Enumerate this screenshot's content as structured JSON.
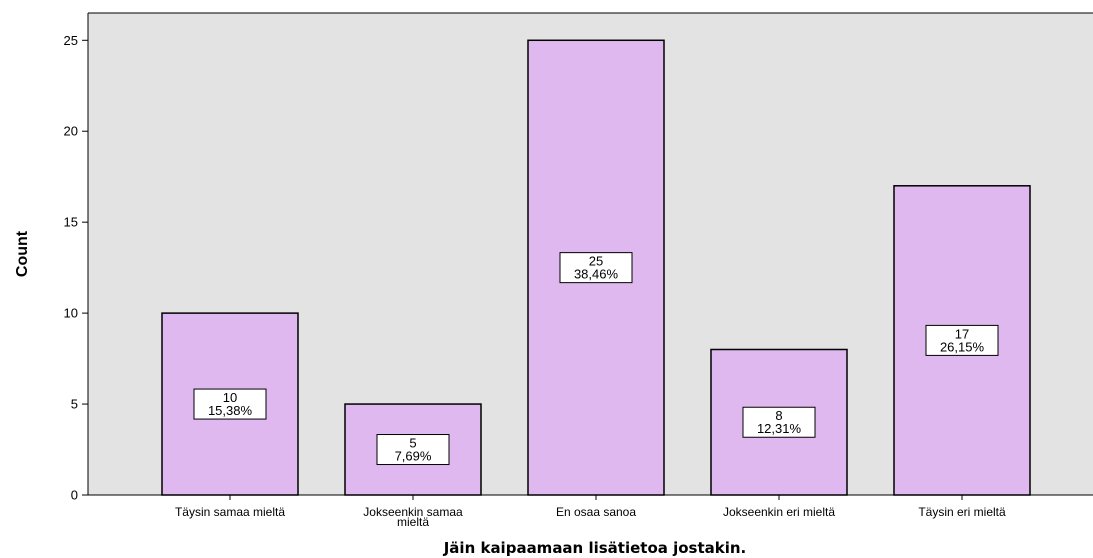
{
  "chart_data": {
    "type": "bar",
    "categories": [
      [
        "Täysin samaa mieltä"
      ],
      [
        "Jokseenkin samaa",
        "mieltä"
      ],
      [
        "En osaa sanoa"
      ],
      [
        "Jokseenkin eri mieltä"
      ],
      [
        "Täysin eri mieltä"
      ]
    ],
    "values": [
      10,
      5,
      25,
      8,
      17
    ],
    "percent_labels": [
      "15,38%",
      "7,69%",
      "38,46%",
      "12,31%",
      "26,15%"
    ],
    "xlabel": "Jäin kaipaamaan lisätietoa jostakin.",
    "ylabel": "Count",
    "ylim": [
      0,
      26.5
    ],
    "yticks": [
      "0",
      "5",
      "10",
      "15",
      "20",
      "25"
    ],
    "grid": false,
    "colors": {
      "bar_fill": "#dfb8f0",
      "bar_stroke": "#000000",
      "plot_bg": "#e3e3e3",
      "label_box_fill": "#ffffff"
    }
  }
}
